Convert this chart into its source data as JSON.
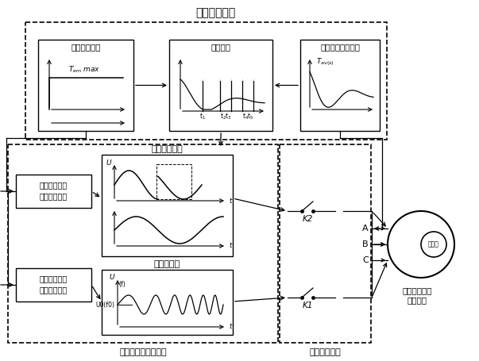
{
  "bg_color": "#ffffff",
  "text_color": "#000000",
  "top_section_label": "控制处理模块",
  "bottom_left_label": "双通道电机驱动模块",
  "bottom_right_label": "切换开关模块",
  "motor_label": "异步起动永磁\n同步电机",
  "encoder_label": "编码器",
  "box1_title": "最大同步转矩",
  "box2_title": "主控制器",
  "box3_title": "异步合成起动转矩",
  "box4_title": "相位切断跳变",
  "box5_title": "调压、调频",
  "unit1_line1": "最大同步转矩",
  "unit1_line2": "起动驱动单元",
  "unit2_line1": "异步合成转矩",
  "unit2_line2": "起动驱动单元",
  "K1_label": "K1",
  "K2_label": "K2",
  "A_label": "A",
  "B_label": "B",
  "C_label": "C",
  "figw": 6.03,
  "figh": 4.55,
  "dpi": 100
}
